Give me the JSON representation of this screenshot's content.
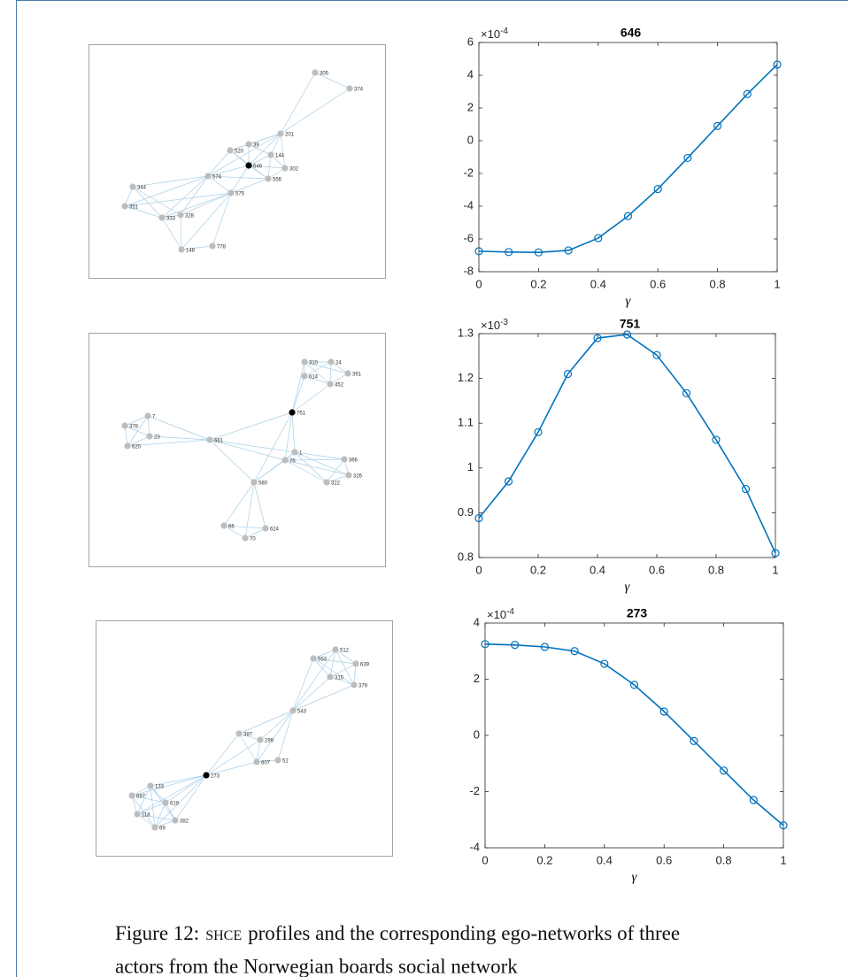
{
  "chart_data": [
    {
      "type": "line",
      "title": "646",
      "x": [
        0,
        0.1,
        0.2,
        0.3,
        0.4,
        0.5,
        0.6,
        0.7,
        0.8,
        0.9,
        1
      ],
      "values": [
        -6.75,
        -6.8,
        -6.82,
        -6.7,
        -5.95,
        -4.6,
        -2.95,
        -1.05,
        0.9,
        2.85,
        4.65
      ],
      "color": "#0072bd",
      "xlim": [
        0,
        1
      ],
      "xticks": [
        0,
        0.2,
        0.4,
        0.6,
        0.8,
        1
      ],
      "ylim": [
        -8,
        6
      ],
      "yticks": [
        -8,
        -6,
        -4,
        -2,
        0,
        2,
        4,
        6
      ],
      "x_label": "γ",
      "y_scale_label": "×10",
      "y_scale_exponent": "-4"
    },
    {
      "type": "line",
      "title": "751",
      "x": [
        0,
        0.1,
        0.2,
        0.3,
        0.4,
        0.5,
        0.6,
        0.7,
        0.8,
        0.9,
        1
      ],
      "values": [
        0.888,
        0.97,
        1.08,
        1.21,
        1.29,
        1.298,
        1.252,
        1.167,
        1.063,
        0.953,
        0.81
      ],
      "color": "#0072bd",
      "xlim": [
        0,
        1
      ],
      "xticks": [
        0,
        0.2,
        0.4,
        0.6,
        0.8,
        1
      ],
      "ylim": [
        0.8,
        1.3
      ],
      "yticks": [
        0.8,
        0.9,
        1,
        1.1,
        1.2,
        1.3
      ],
      "x_label": "γ",
      "y_scale_label": "×10",
      "y_scale_exponent": "-3"
    },
    {
      "type": "line",
      "title": "273",
      "x": [
        0,
        0.1,
        0.2,
        0.3,
        0.4,
        0.5,
        0.6,
        0.7,
        0.8,
        0.9,
        1
      ],
      "values": [
        3.25,
        3.22,
        3.15,
        3.0,
        2.55,
        1.8,
        0.85,
        -0.2,
        -1.25,
        -2.3,
        -3.2
      ],
      "color": "#0072bd",
      "xlim": [
        0,
        1
      ],
      "xticks": [
        0,
        0.2,
        0.4,
        0.6,
        0.8,
        1
      ],
      "ylim": [
        -4,
        4
      ],
      "yticks": [
        -4,
        -2,
        0,
        2,
        4
      ],
      "x_label": "γ",
      "y_scale_label": "×10",
      "y_scale_exponent": "-4"
    }
  ],
  "networks": [
    {
      "nodes": [
        "305",
        "374",
        "201",
        "39",
        "520",
        "144",
        "646",
        "302",
        "574",
        "556",
        "344",
        "575",
        "351",
        "333",
        "328",
        "778",
        "148"
      ]
    },
    {
      "nodes": [
        "310",
        "24",
        "614",
        "391",
        "452",
        "751",
        "7",
        "378",
        "23",
        "661",
        "620",
        "1",
        "76",
        "366",
        "326",
        "322",
        "580",
        "66",
        "624",
        "70"
      ]
    },
    {
      "nodes": [
        "512",
        "553",
        "639",
        "315",
        "379",
        "543",
        "387",
        "299",
        "52",
        "607",
        "273",
        "133",
        "697",
        "619",
        "118",
        "382",
        "69"
      ]
    }
  ],
  "caption": {
    "label": "Figure 12:",
    "abbr": "shce",
    "lines": [
      "profiles and the corresponding ego-networks of three",
      "actors from the Norwegian boards social network"
    ]
  }
}
